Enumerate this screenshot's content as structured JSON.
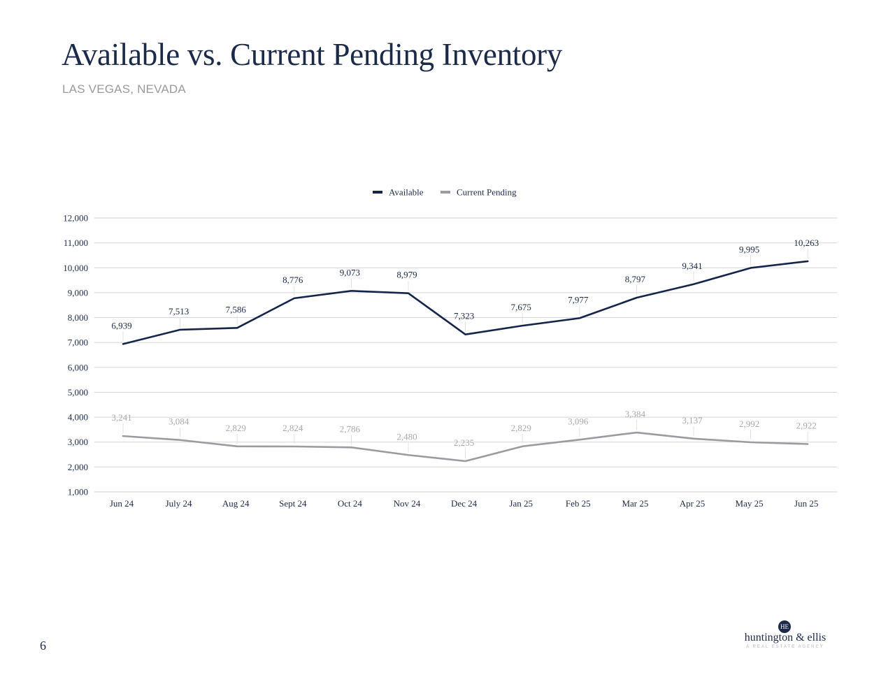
{
  "page": {
    "title": "Available vs. Current Pending Inventory",
    "subtitle": "LAS VEGAS, NEVADA",
    "page_number": "6"
  },
  "logo": {
    "monogram": "HE",
    "name": "huntington & ellis",
    "tagline": "A REAL ESTATE AGENCY"
  },
  "colors": {
    "available": "#15254a",
    "pending": "#9b9ba1",
    "grid": "#d5d5d8",
    "text": "#1c2a4a"
  },
  "chart_data": {
    "type": "line",
    "title": "",
    "xlabel": "",
    "ylabel": "",
    "ylim": [
      1000,
      12000
    ],
    "yticks": [
      1000,
      2000,
      3000,
      4000,
      5000,
      6000,
      7000,
      8000,
      9000,
      10000,
      11000,
      12000
    ],
    "ytick_labels": [
      "1,000",
      "2,000",
      "3,000",
      "4,000",
      "5,000",
      "6,000",
      "7,000",
      "8,000",
      "9,000",
      "10,000",
      "11,000",
      "12,000"
    ],
    "grid": true,
    "legend_position": "top-center",
    "categories": [
      "Jun 24",
      "July 24",
      "Aug 24",
      "Sept 24",
      "Oct 24",
      "Nov 24",
      "Dec 24",
      "Jan 25",
      "Feb 25",
      "Mar 25",
      "Apr 25",
      "May 25",
      "Jun 25"
    ],
    "series": [
      {
        "name": "Available",
        "values": [
          6939,
          7513,
          7586,
          8776,
          9073,
          8979,
          7323,
          7675,
          7977,
          8797,
          9341,
          9995,
          10263
        ],
        "labels": [
          "6,939",
          "7,513",
          "7,586",
          "8,776",
          "9,073",
          "8,979",
          "7,323",
          "7,675",
          "7,977",
          "8,797",
          "9,341",
          "9,995",
          "10,263"
        ]
      },
      {
        "name": "Current Pending",
        "values": [
          3241,
          3084,
          2829,
          2824,
          2786,
          2480,
          2235,
          2829,
          3096,
          3384,
          3137,
          2992,
          2922
        ],
        "labels": [
          "3,241",
          "3,084",
          "2,829",
          "2,824",
          "2,786",
          "2,480",
          "2,235",
          "2,829",
          "3,096",
          "3,384",
          "3,137",
          "2,992",
          "2,922"
        ]
      }
    ]
  }
}
